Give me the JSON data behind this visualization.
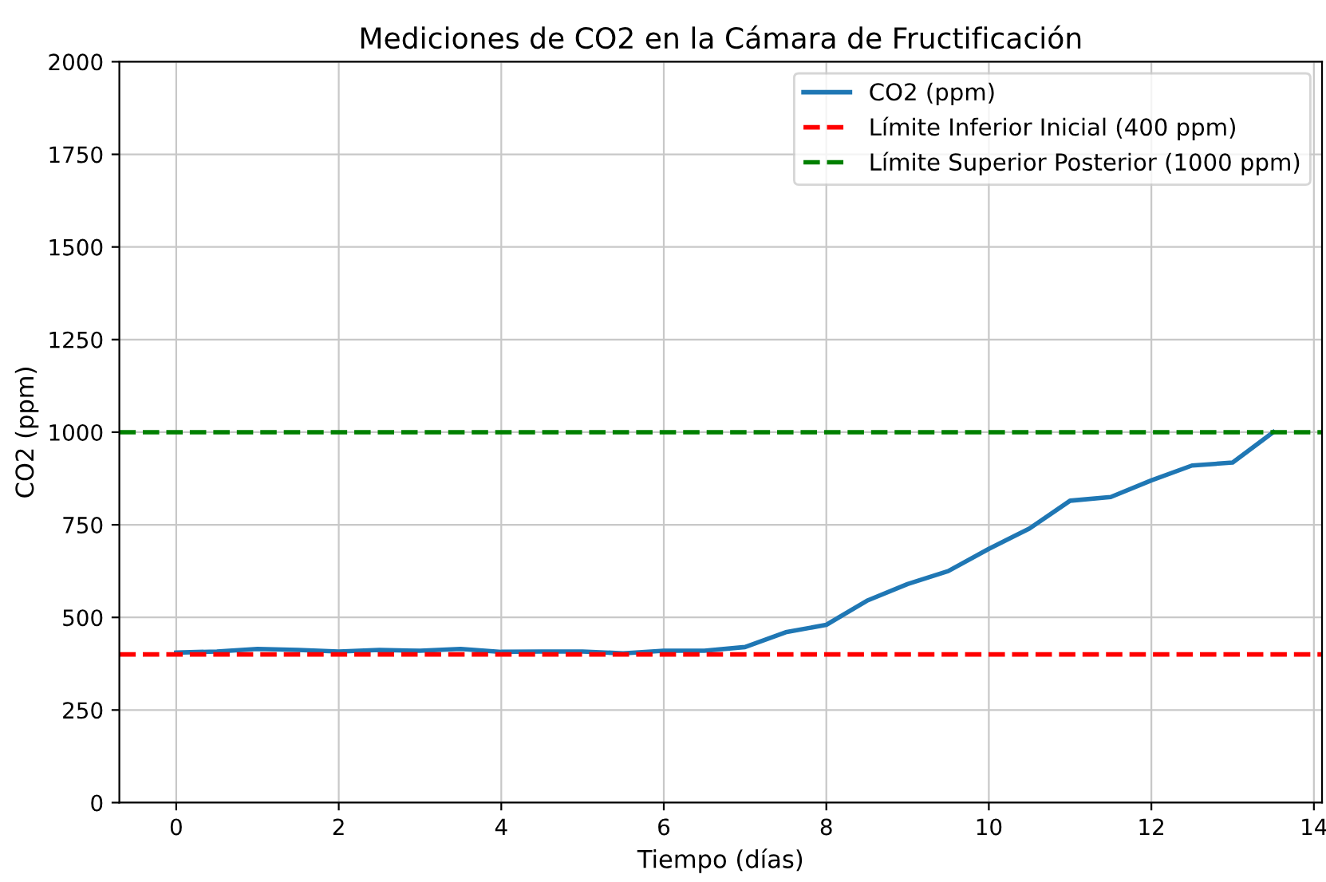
{
  "chart_data": {
    "type": "line",
    "title": "Mediciones de CO2 en la Cámara de Fructificación",
    "xlabel": "Tiempo (días)",
    "ylabel": "CO2 (ppm)",
    "x": [
      0,
      0.5,
      1,
      1.5,
      2,
      2.5,
      3,
      3.5,
      4,
      4.5,
      5,
      5.5,
      6,
      6.5,
      7,
      7.5,
      8,
      8.5,
      9,
      9.5,
      10,
      10.5,
      11,
      11.5,
      12,
      12.5,
      13,
      13.5
    ],
    "series": [
      {
        "name": "CO2 (ppm)",
        "color": "#1f77b4",
        "values": [
          405,
          408,
          415,
          412,
          408,
          412,
          410,
          415,
          407,
          408,
          408,
          403,
          410,
          410,
          420,
          460,
          480,
          545,
          590,
          625,
          685,
          740,
          815,
          825,
          870,
          910,
          918,
          1000
        ]
      }
    ],
    "ref_lines": [
      {
        "axis": "y",
        "value": 400,
        "label": "Límite Inferior Inicial (400 ppm)",
        "color": "#ff0000",
        "line_style": "dashed"
      },
      {
        "axis": "y",
        "value": 1000,
        "label": "Límite Superior Posterior (1000 ppm)",
        "color": "#008000",
        "line_style": "dashed"
      }
    ],
    "xlim": [
      -0.7,
      14.1
    ],
    "xticks": [
      0,
      2,
      4,
      6,
      8,
      10,
      12,
      14
    ],
    "ylim": [
      0,
      2000
    ],
    "yticks": [
      0,
      250,
      500,
      750,
      1000,
      1250,
      1500,
      1750,
      2000
    ],
    "grid": true,
    "legend": "top right",
    "line_style": "solid",
    "marker": "none"
  }
}
